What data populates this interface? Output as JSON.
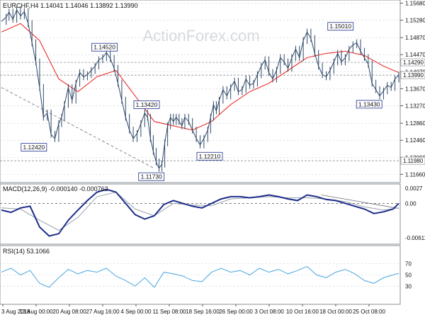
{
  "chart_data": [
    {
      "type": "candlestick",
      "title": "EURCHF,H4  1.14041 1.14046 1.13892 1.13990",
      "watermark": "ActionForex.com",
      "ylim": [
        1.115,
        1.1572
      ],
      "y_ticks": [
        "1.15680",
        "1.15280",
        "1.14870",
        "1.14470",
        "1.14070",
        "1.13670",
        "1.13270",
        "1.12860",
        "1.12460",
        "1.12060",
        "1.11660"
      ],
      "x_ticks": [
        "3 Aug 2018",
        "13 Aug 00:00",
        "20 Aug 08:00",
        "27 Aug 16:00",
        "4 Sep 00:00",
        "11 Sep 08:00",
        "18 Sep 16:00",
        "26 Sep 00:00",
        "3 Oct 08:00",
        "10 Oct 16:00",
        "18 Oct 00:00",
        "25 Oct 08:00"
      ],
      "close_path": [
        [
          0,
          1.1525
        ],
        [
          5,
          1.1535
        ],
        [
          8,
          1.1547
        ],
        [
          12,
          1.153
        ],
        [
          16,
          1.1552
        ],
        [
          20,
          1.1538
        ],
        [
          24,
          1.1548
        ],
        [
          28,
          1.152
        ],
        [
          32,
          1.1475
        ],
        [
          36,
          1.143
        ],
        [
          40,
          1.137
        ],
        [
          44,
          1.13
        ],
        [
          48,
          1.131
        ],
        [
          52,
          1.126
        ],
        [
          56,
          1.125
        ],
        [
          60,
          1.1285
        ],
        [
          63,
          1.13
        ],
        [
          66,
          1.133
        ],
        [
          70,
          1.137
        ],
        [
          74,
          1.134
        ],
        [
          78,
          1.138
        ],
        [
          82,
          1.1405
        ],
        [
          86,
          1.1395
        ],
        [
          90,
          1.14
        ],
        [
          94,
          1.141
        ],
        [
          98,
          1.142
        ],
        [
          102,
          1.1435
        ],
        [
          106,
          1.144
        ],
        [
          110,
          1.1452
        ],
        [
          114,
          1.1438
        ],
        [
          118,
          1.1415
        ],
        [
          122,
          1.138
        ],
        [
          126,
          1.134
        ],
        [
          130,
          1.13
        ],
        [
          134,
          1.127
        ],
        [
          138,
          1.125
        ],
        [
          142,
          1.1262
        ],
        [
          146,
          1.1285
        ],
        [
          150,
          1.131
        ],
        [
          153,
          1.13
        ],
        [
          156,
          1.125
        ],
        [
          159,
          1.122
        ],
        [
          162,
          1.1195
        ],
        [
          165,
          1.118
        ],
        [
          168,
          1.119
        ],
        [
          171,
          1.124
        ],
        [
          174,
          1.128
        ],
        [
          177,
          1.13
        ],
        [
          180,
          1.129
        ],
        [
          183,
          1.13
        ],
        [
          186,
          1.129
        ],
        [
          189,
          1.128
        ],
        [
          192,
          1.13
        ],
        [
          196,
          1.129
        ],
        [
          200,
          1.127
        ],
        [
          204,
          1.125
        ],
        [
          208,
          1.1235
        ],
        [
          212,
          1.125
        ],
        [
          216,
          1.127
        ],
        [
          219,
          1.13
        ],
        [
          222,
          1.133
        ],
        [
          225,
          1.1315
        ],
        [
          228,
          1.134
        ],
        [
          232,
          1.1365
        ],
        [
          236,
          1.135
        ],
        [
          240,
          1.137
        ],
        [
          244,
          1.1385
        ],
        [
          248,
          1.136
        ],
        [
          252,
          1.1365
        ],
        [
          256,
          1.139
        ],
        [
          260,
          1.1375
        ],
        [
          264,
          1.138
        ],
        [
          268,
          1.14
        ],
        [
          272,
          1.142
        ],
        [
          276,
          1.1435
        ],
        [
          280,
          1.1405
        ],
        [
          284,
          1.139
        ],
        [
          288,
          1.141
        ],
        [
          292,
          1.144
        ],
        [
          296,
          1.143
        ],
        [
          300,
          1.1415
        ],
        [
          304,
          1.144
        ],
        [
          308,
          1.146
        ],
        [
          312,
          1.144
        ],
        [
          316,
          1.148
        ],
        [
          320,
          1.15
        ],
        [
          324,
          1.1485
        ],
        [
          328,
          1.145
        ],
        [
          332,
          1.142
        ],
        [
          336,
          1.14
        ],
        [
          340,
          1.1395
        ],
        [
          344,
          1.141
        ],
        [
          348,
          1.143
        ],
        [
          352,
          1.145
        ],
        [
          356,
          1.143
        ],
        [
          360,
          1.144
        ],
        [
          364,
          1.146
        ],
        [
          368,
          1.147
        ],
        [
          372,
          1.1475
        ],
        [
          376,
          1.1455
        ],
        [
          380,
          1.144
        ],
        [
          384,
          1.1425
        ],
        [
          388,
          1.138
        ],
        [
          392,
          1.1365
        ],
        [
          396,
          1.135
        ],
        [
          400,
          1.1362
        ],
        [
          404,
          1.1375
        ],
        [
          408,
          1.137
        ],
        [
          412,
          1.139
        ],
        [
          416,
          1.1399
        ]
      ],
      "ma_path": [
        [
          0,
          1.15
        ],
        [
          20,
          1.152
        ],
        [
          40,
          1.148
        ],
        [
          60,
          1.139
        ],
        [
          80,
          1.136
        ],
        [
          100,
          1.1395
        ],
        [
          120,
          1.141
        ],
        [
          140,
          1.135
        ],
        [
          160,
          1.129
        ],
        [
          180,
          1.128
        ],
        [
          200,
          1.127
        ],
        [
          220,
          1.129
        ],
        [
          240,
          1.133
        ],
        [
          260,
          1.136
        ],
        [
          280,
          1.138
        ],
        [
          300,
          1.141
        ],
        [
          320,
          1.144
        ],
        [
          340,
          1.145
        ],
        [
          360,
          1.1455
        ],
        [
          380,
          1.1445
        ],
        [
          400,
          1.142
        ],
        [
          416,
          1.1405
        ]
      ],
      "annotations": [
        {
          "label": "1.14520",
          "at": [
            108,
            1.1452
          ]
        },
        {
          "label": "1.12420",
          "at": [
            34,
            1.1242
          ]
        },
        {
          "label": "1.13420",
          "at": [
            152,
            1.1342
          ]
        },
        {
          "label": "1.11730",
          "at": [
            157,
            1.1173
          ]
        },
        {
          "label": "1.12210",
          "at": [
            218,
            1.1221
          ]
        },
        {
          "label": "1.15010",
          "at": [
            355,
            1.1501
          ]
        },
        {
          "label": "1.13430",
          "at": [
            385,
            1.1343
          ]
        }
      ],
      "horizontal_levels": [
        {
          "label": "1.14290",
          "value": 1.1429
        },
        {
          "label": "1.13990",
          "value": 1.1399
        },
        {
          "label": "1.11980",
          "value": 1.1198
        }
      ],
      "trendline": [
        [
          0,
          1.137
        ],
        [
          160,
          1.118
        ]
      ]
    },
    {
      "type": "line",
      "title": "MACD(12,26,9) -0.000140 -0.000762",
      "ylim": [
        -0.007,
        0.0032
      ],
      "y_ticks": [
        "0.0027",
        "0.00",
        "-0.006114"
      ],
      "series": [
        {
          "values": [
            [
              0,
              -0.0012
            ],
            [
              10,
              -0.0016
            ],
            [
              20,
              -0.0008
            ],
            [
              30,
              -0.0005
            ],
            [
              40,
              -0.0042
            ],
            [
              50,
              -0.0058
            ],
            [
              60,
              -0.0054
            ],
            [
              70,
              -0.003
            ],
            [
              80,
              -0.0012
            ],
            [
              90,
              0.0005
            ],
            [
              100,
              0.002
            ],
            [
              110,
              0.0025
            ],
            [
              120,
              0.002
            ],
            [
              130,
              0.0
            ],
            [
              140,
              -0.002
            ],
            [
              150,
              -0.0028
            ],
            [
              160,
              -0.0022
            ],
            [
              170,
              -0.0002
            ],
            [
              180,
              0.0005
            ],
            [
              190,
              0.0
            ],
            [
              200,
              -0.0005
            ],
            [
              210,
              -0.0008
            ],
            [
              220,
              0.0
            ],
            [
              230,
              0.0008
            ],
            [
              240,
              0.0012
            ],
            [
              250,
              0.0012
            ],
            [
              260,
              0.001
            ],
            [
              270,
              0.0012
            ],
            [
              280,
              0.0015
            ],
            [
              290,
              0.0012
            ],
            [
              300,
              0.0008
            ],
            [
              310,
              0.0005
            ],
            [
              320,
              0.0015
            ],
            [
              330,
              0.0012
            ],
            [
              340,
              0.0007
            ],
            [
              350,
              0.0005
            ],
            [
              360,
              0.0
            ],
            [
              370,
              -0.0005
            ],
            [
              380,
              -0.001
            ],
            [
              390,
              -0.0018
            ],
            [
              400,
              -0.0015
            ],
            [
              410,
              -0.001
            ],
            [
              416,
              0.0
            ]
          ]
        },
        {
          "values": [
            [
              0,
              -0.0008
            ],
            [
              20,
              -0.001
            ],
            [
              40,
              -0.003
            ],
            [
              60,
              -0.0048
            ],
            [
              80,
              -0.0025
            ],
            [
              100,
              0.0012
            ],
            [
              120,
              0.002
            ],
            [
              140,
              -0.001
            ],
            [
              160,
              -0.0022
            ],
            [
              180,
              0.0
            ],
            [
              200,
              -0.0003
            ],
            [
              220,
              -0.0004
            ],
            [
              240,
              0.0008
            ],
            [
              260,
              0.001
            ],
            [
              280,
              0.0012
            ],
            [
              300,
              0.001
            ],
            [
              320,
              0.001
            ],
            [
              340,
              0.0008
            ],
            [
              360,
              0.0003
            ],
            [
              380,
              -0.0006
            ],
            [
              400,
              -0.0012
            ],
            [
              416,
              -0.0008
            ]
          ]
        }
      ],
      "trendline": [
        [
          335,
          0.0015
        ],
        [
          416,
          -0.0009
        ]
      ]
    },
    {
      "type": "line",
      "title": "RSI(14) 53.1066",
      "ylim": [
        0,
        100
      ],
      "y_ticks": [
        "70",
        "50",
        "30"
      ],
      "series": [
        {
          "values": [
            [
              0,
              55
            ],
            [
              10,
              62
            ],
            [
              20,
              50
            ],
            [
              30,
              58
            ],
            [
              40,
              35
            ],
            [
              50,
              28
            ],
            [
              60,
              45
            ],
            [
              70,
              60
            ],
            [
              80,
              52
            ],
            [
              90,
              58
            ],
            [
              100,
              55
            ],
            [
              110,
              62
            ],
            [
              120,
              48
            ],
            [
              130,
              40
            ],
            [
              140,
              30
            ],
            [
              150,
              45
            ],
            [
              160,
              28
            ],
            [
              170,
              55
            ],
            [
              180,
              52
            ],
            [
              190,
              48
            ],
            [
              200,
              40
            ],
            [
              210,
              38
            ],
            [
              220,
              55
            ],
            [
              230,
              62
            ],
            [
              240,
              55
            ],
            [
              250,
              58
            ],
            [
              260,
              50
            ],
            [
              270,
              62
            ],
            [
              280,
              55
            ],
            [
              290,
              60
            ],
            [
              300,
              52
            ],
            [
              310,
              58
            ],
            [
              320,
              65
            ],
            [
              330,
              50
            ],
            [
              340,
              45
            ],
            [
              350,
              55
            ],
            [
              360,
              60
            ],
            [
              370,
              52
            ],
            [
              380,
              40
            ],
            [
              390,
              35
            ],
            [
              400,
              45
            ],
            [
              410,
              50
            ],
            [
              416,
              53
            ]
          ]
        }
      ]
    }
  ],
  "colors": {
    "price": "#2e4868",
    "moving_average": "#e8302c",
    "macd": "#1c2d8a",
    "signal": "#9aa2ae",
    "rsi": "#4aa6e0",
    "grid": "#c8ccd2",
    "annotation_box": "#1c2d8a",
    "trendline": "#6a6f78",
    "watermark": "#d7dadd"
  }
}
